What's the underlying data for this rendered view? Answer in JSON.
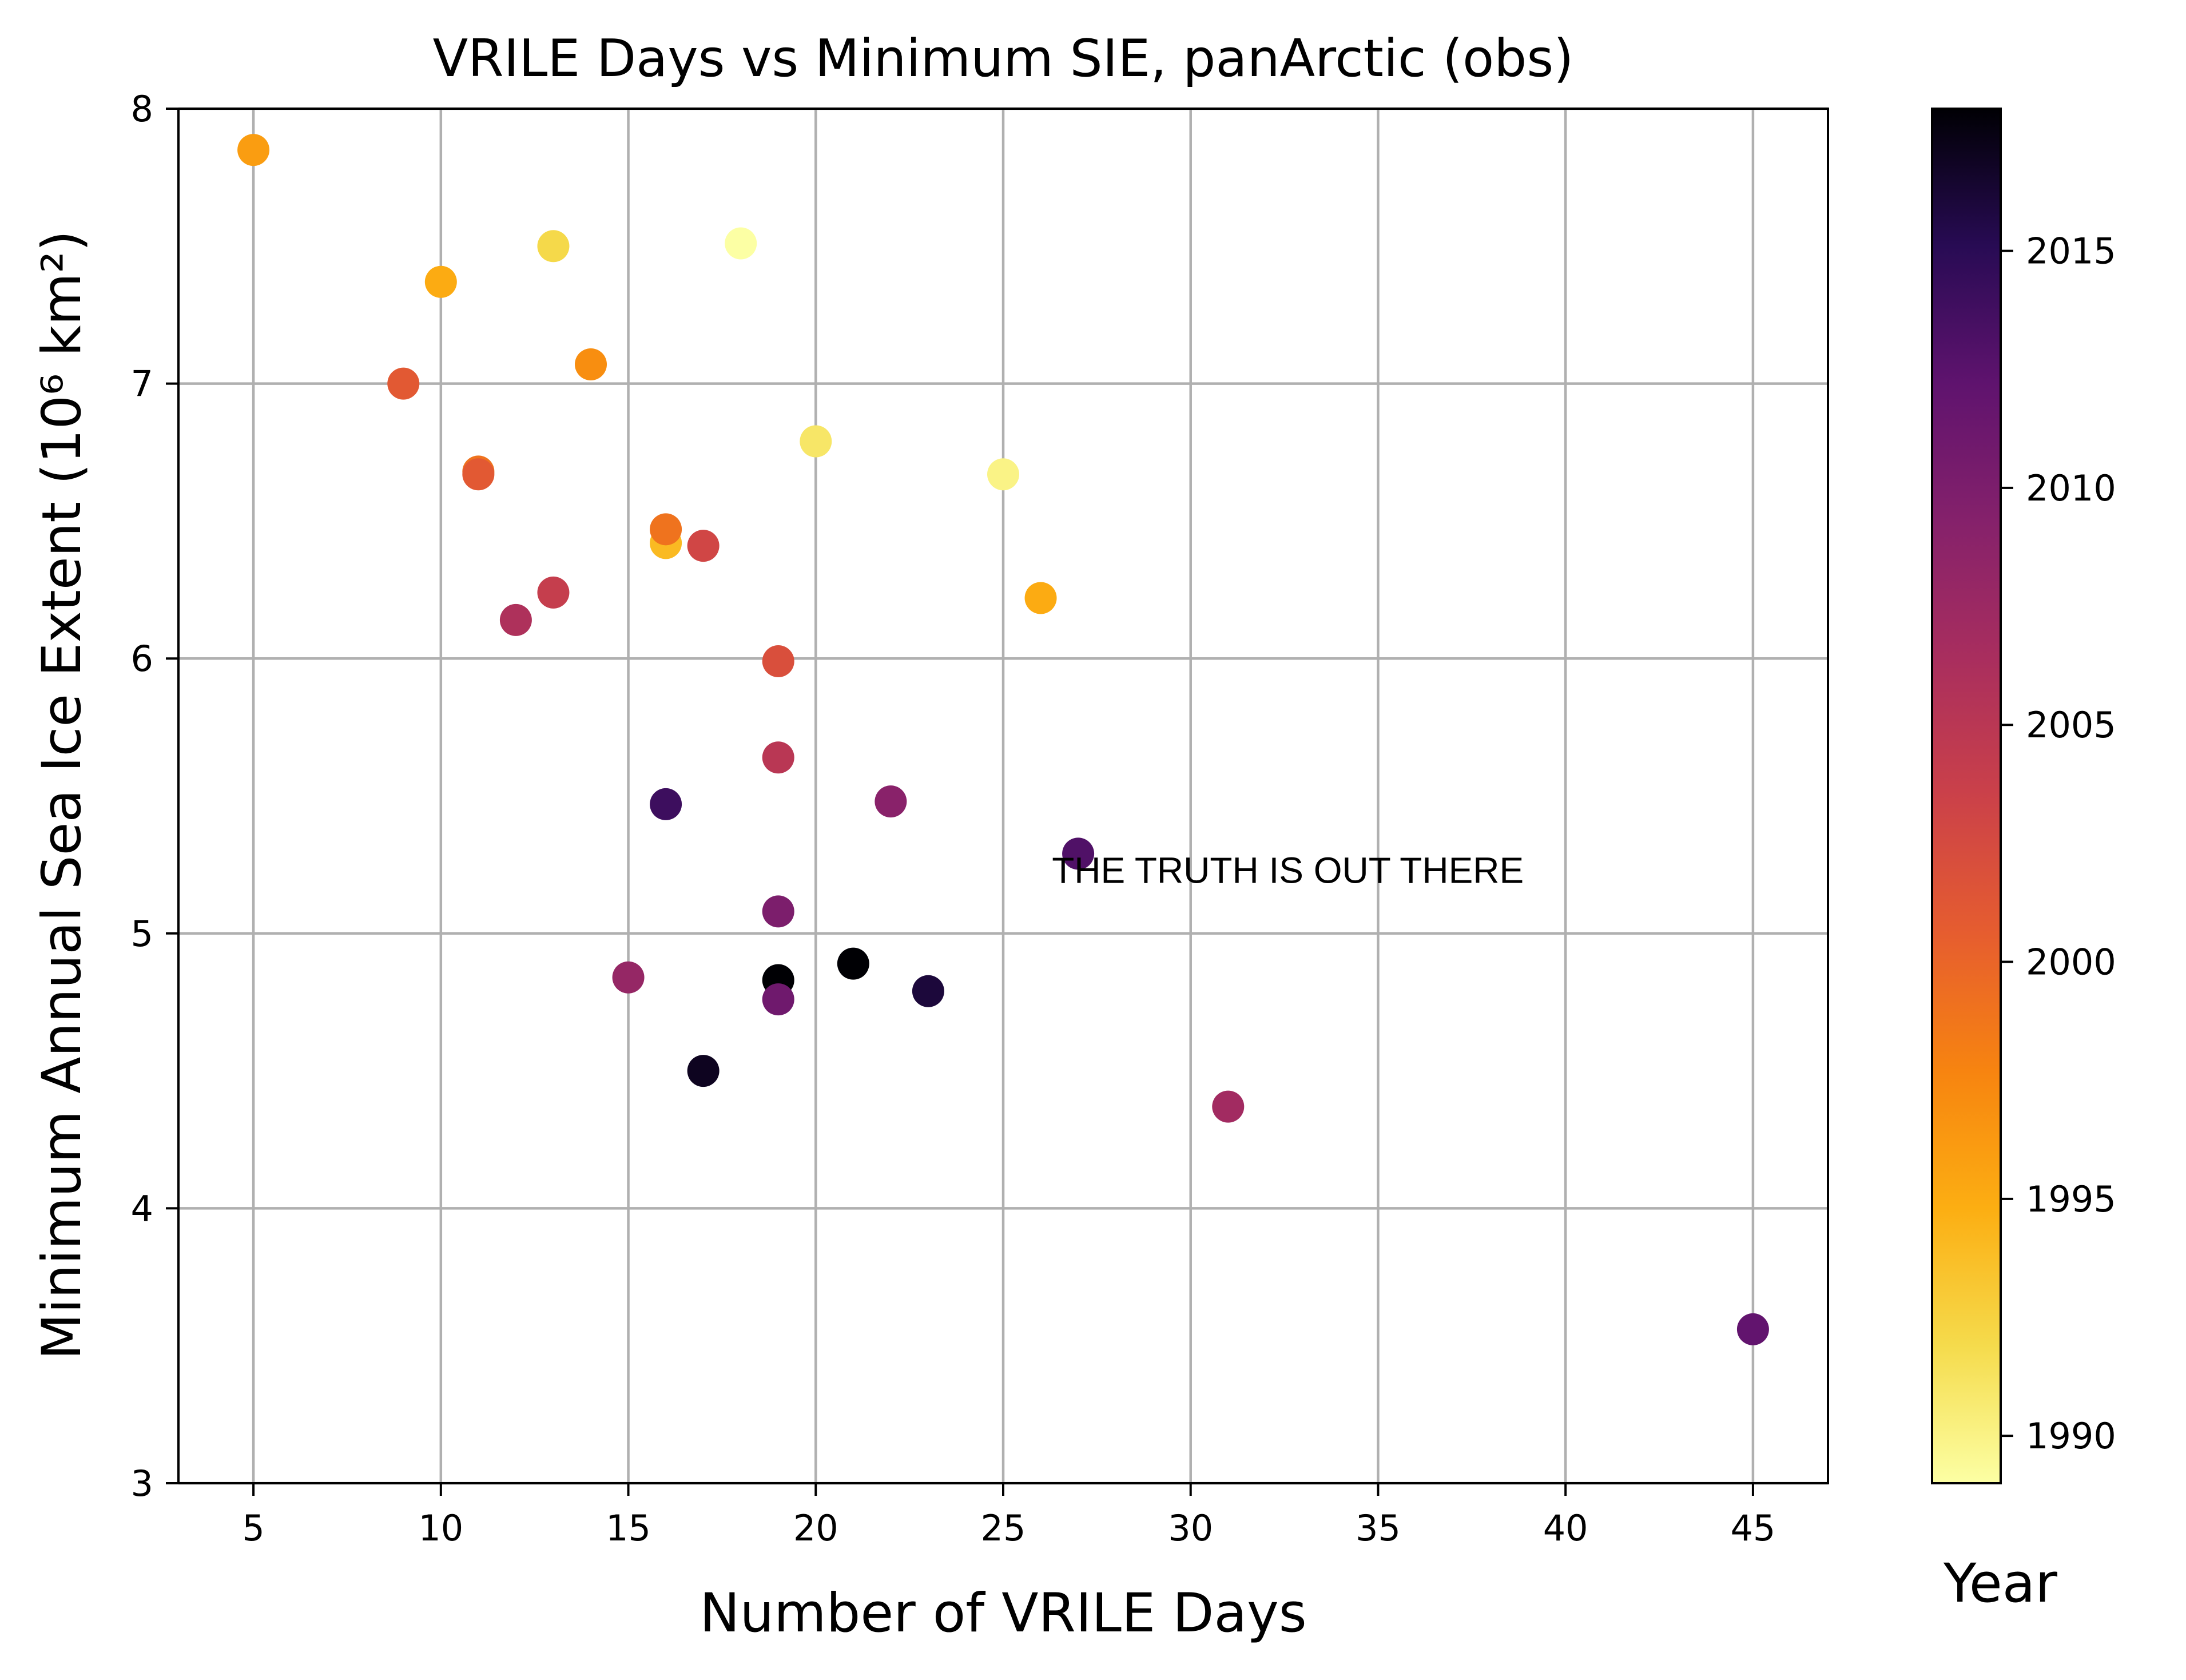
{
  "chart_data": {
    "type": "scatter",
    "title": "VRILE Days vs Minimum SIE, panArctic (obs)",
    "xlabel": "Number of VRILE Days",
    "ylabel": "Minimum Annual Sea Ice Extent (10⁶ km²)",
    "xlim": [
      3,
      47
    ],
    "ylim": [
      3,
      8
    ],
    "xticks": [
      5,
      10,
      15,
      20,
      25,
      30,
      35,
      40,
      45
    ],
    "yticks": [
      3,
      4,
      5,
      6,
      7,
      8
    ],
    "grid": true,
    "colormap": "inferno_r",
    "colorbar": {
      "label": "Year",
      "range": [
        1989,
        2018
      ],
      "ticks": [
        1990,
        1995,
        2000,
        2005,
        2010,
        2015
      ]
    },
    "annotation": {
      "text": "THE TRUTH IS OUT THERE",
      "x": 26.3,
      "y": 5.23
    },
    "points": [
      {
        "x": 5,
        "y": 7.85,
        "year": 1996
      },
      {
        "x": 10,
        "y": 7.37,
        "year": 1995
      },
      {
        "x": 13,
        "y": 7.5,
        "year": 1992
      },
      {
        "x": 18,
        "y": 7.51,
        "year": 1989
      },
      {
        "x": 9,
        "y": 7.0,
        "year": 2001
      },
      {
        "x": 14,
        "y": 7.07,
        "year": 1997
      },
      {
        "x": 11,
        "y": 6.68,
        "year": 1999
      },
      {
        "x": 11,
        "y": 6.67,
        "year": 2001
      },
      {
        "x": 20,
        "y": 6.79,
        "year": 1991
      },
      {
        "x": 25,
        "y": 6.67,
        "year": 1990
      },
      {
        "x": 16,
        "y": 6.42,
        "year": 1994
      },
      {
        "x": 16,
        "y": 6.47,
        "year": 1999
      },
      {
        "x": 17,
        "y": 6.41,
        "year": 2003
      },
      {
        "x": 26,
        "y": 6.22,
        "year": 1995
      },
      {
        "x": 13,
        "y": 6.24,
        "year": 2004
      },
      {
        "x": 12,
        "y": 6.14,
        "year": 2006
      },
      {
        "x": 19,
        "y": 5.99,
        "year": 2002
      },
      {
        "x": 19,
        "y": 5.64,
        "year": 2005
      },
      {
        "x": 22,
        "y": 5.48,
        "year": 2009
      },
      {
        "x": 16,
        "y": 5.47,
        "year": 2014
      },
      {
        "x": 27,
        "y": 5.29,
        "year": 2013
      },
      {
        "x": 19,
        "y": 5.08,
        "year": 2010
      },
      {
        "x": 15,
        "y": 4.84,
        "year": 2008
      },
      {
        "x": 21,
        "y": 4.89,
        "year": 2018
      },
      {
        "x": 19,
        "y": 4.83,
        "year": 2018
      },
      {
        "x": 23,
        "y": 4.79,
        "year": 2016
      },
      {
        "x": 19,
        "y": 4.76,
        "year": 2011
      },
      {
        "x": 17,
        "y": 4.5,
        "year": 2017
      },
      {
        "x": 31,
        "y": 4.37,
        "year": 2007
      },
      {
        "x": 45,
        "y": 3.56,
        "year": 2012
      }
    ]
  }
}
